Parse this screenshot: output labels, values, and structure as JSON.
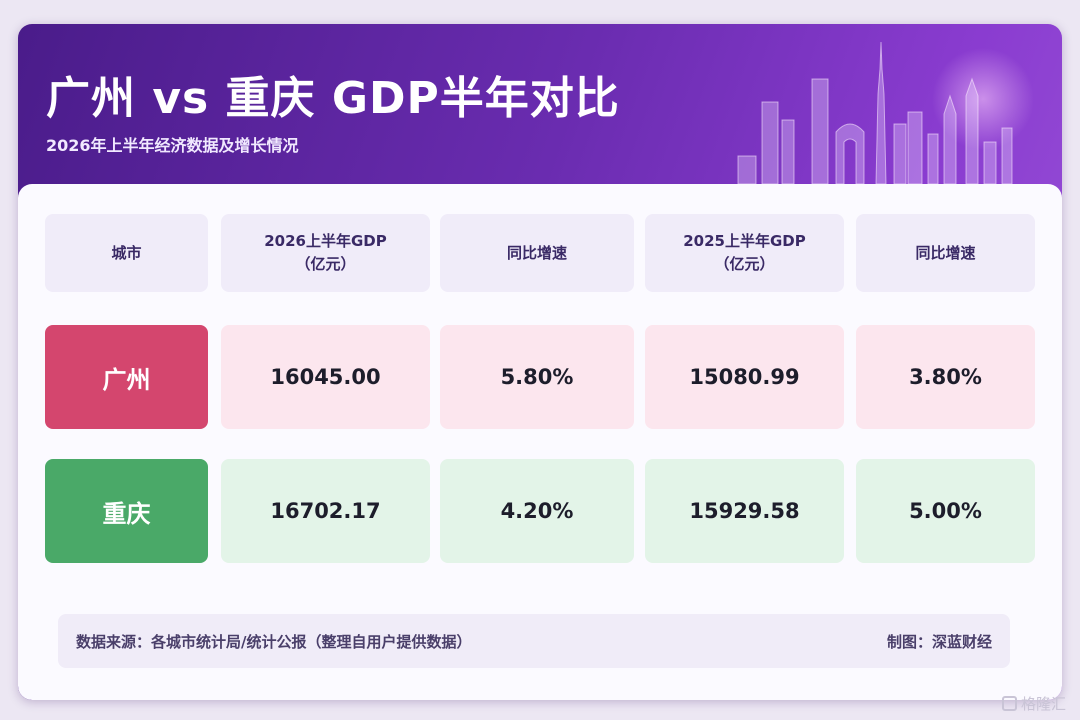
{
  "header": {
    "title": "广州 vs 重庆 GDP半年对比",
    "subtitle": "2026年上半年经济数据及增长情况"
  },
  "table": {
    "columns": [
      {
        "line1": "城市",
        "line2": ""
      },
      {
        "line1": "2026上半年GDP",
        "line2": "（亿元）"
      },
      {
        "line1": "同比增速",
        "line2": ""
      },
      {
        "line1": "2025上半年GDP",
        "line2": "（亿元）"
      },
      {
        "line1": "同比增速",
        "line2": ""
      }
    ],
    "rows": [
      {
        "city": "广州",
        "gdp_2026": "16045.00",
        "growth_2026": "5.80%",
        "gdp_2025": "15080.99",
        "growth_2025": "3.80%"
      },
      {
        "city": "重庆",
        "gdp_2026": "16702.17",
        "growth_2026": "4.20%",
        "gdp_2025": "15929.58",
        "growth_2025": "5.00%"
      }
    ]
  },
  "footer": {
    "source": "数据来源：各城市统计局/统计公报（整理自用户提供数据）",
    "credit": "制图：深蓝财经"
  },
  "watermark": "格隆汇",
  "colors": {
    "guangzhou": "#d4466e",
    "chongqing": "#4aa968",
    "header_bg": "#6a2cb0"
  },
  "chart_data": {
    "type": "table",
    "title": "广州 vs 重庆 GDP半年对比",
    "subtitle": "2026年上半年经济数据及增长情况",
    "columns": [
      "城市",
      "2026上半年GDP（亿元）",
      "同比增速",
      "2025上半年GDP（亿元）",
      "同比增速"
    ],
    "rows": [
      [
        "广州",
        16045.0,
        5.8,
        15080.99,
        3.8
      ],
      [
        "重庆",
        16702.17,
        4.2,
        15929.58,
        5.0
      ]
    ]
  }
}
